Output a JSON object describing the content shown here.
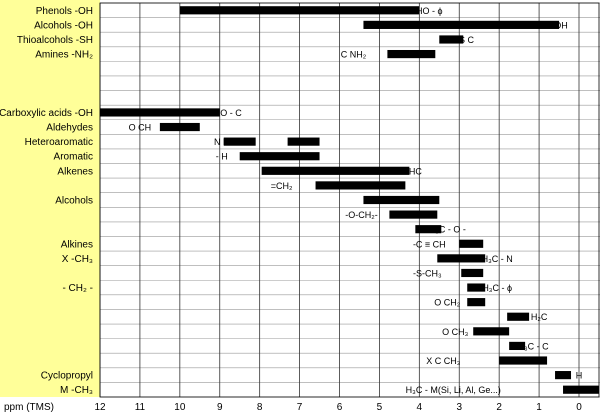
{
  "chart_data": {
    "type": "bar",
    "x_axis": {
      "label": "ppm (TMS)",
      "ticks": [
        "12",
        "11",
        "10",
        "9",
        "8",
        "7",
        "6",
        "5",
        "4",
        "3",
        "2",
        "1",
        "0"
      ],
      "range": [
        12,
        -0.5
      ],
      "reversed": true
    },
    "grid": true,
    "legend": "none",
    "colors": {
      "panel": "#ffff99",
      "bar": "#000000",
      "grid": "#999999",
      "major_grid": "#333333"
    },
    "rows": [
      {
        "label": "Phenols -OH",
        "row": 0
      },
      {
        "label": "Alcohols -OH",
        "row": 1
      },
      {
        "label": "Thioalcohols -SH",
        "row": 2
      },
      {
        "label": "Amines -NH₂",
        "row": 3
      },
      {
        "label": "Carboxylic acids -OH",
        "row": 7
      },
      {
        "label": "Aldehydes",
        "row": 8
      },
      {
        "label": "Heteroaromatic",
        "row": 9
      },
      {
        "label": "Aromatic",
        "row": 10
      },
      {
        "label": "Alkenes",
        "row": 11
      },
      {
        "label": "Alcohols",
        "row": 13
      },
      {
        "label": "Alkines",
        "row": 16
      },
      {
        "label": "X -CH₃",
        "row": 17
      },
      {
        "label": "- CH₂ -",
        "row": 19
      },
      {
        "label": "Cyclopropyl",
        "row": 25
      },
      {
        "label": "M -CH₃",
        "row": 26
      }
    ],
    "bars": [
      {
        "row": 0,
        "from": 10.0,
        "to": 4.0
      },
      {
        "row": 1,
        "from": 5.4,
        "to": 0.5
      },
      {
        "row": 2,
        "from": 3.5,
        "to": 2.9
      },
      {
        "row": 3,
        "from": 4.8,
        "to": 3.6
      },
      {
        "row": 7,
        "from": 12.0,
        "to": 9.0
      },
      {
        "row": 8,
        "from": 10.5,
        "to": 9.5
      },
      {
        "row": 9,
        "from": 8.9,
        "to": 8.1
      },
      {
        "row": 9,
        "from": 7.3,
        "to": 6.5
      },
      {
        "row": 10,
        "from": 8.5,
        "to": 6.5
      },
      {
        "row": 11,
        "from": 7.95,
        "to": 4.25
      },
      {
        "row": 12,
        "from": 6.6,
        "to": 4.35
      },
      {
        "row": 13,
        "from": 5.4,
        "to": 3.5
      },
      {
        "row": 14,
        "from": 4.75,
        "to": 3.55
      },
      {
        "row": 15,
        "from": 4.1,
        "to": 3.45
      },
      {
        "row": 16,
        "from": 3.0,
        "to": 2.4
      },
      {
        "row": 17,
        "from": 3.55,
        "to": 2.35
      },
      {
        "row": 18,
        "from": 2.95,
        "to": 2.4
      },
      {
        "row": 19,
        "from": 2.8,
        "to": 2.35
      },
      {
        "row": 20,
        "from": 2.8,
        "to": 2.35
      },
      {
        "row": 21,
        "from": 1.8,
        "to": 1.25
      },
      {
        "row": 22,
        "from": 2.65,
        "to": 1.75
      },
      {
        "row": 23,
        "from": 1.75,
        "to": 1.35
      },
      {
        "row": 24,
        "from": 2.0,
        "to": 0.8
      },
      {
        "row": 25,
        "from": 0.6,
        "to": 0.2
      },
      {
        "row": 26,
        "from": 0.4,
        "to": -0.5
      }
    ],
    "annotations": [
      {
        "row": 0,
        "at": 3.75,
        "text": "HO - ϕ"
      },
      {
        "row": 1,
        "at": 0.7,
        "text": "C · - OH"
      },
      {
        "row": 2,
        "at": 2.9,
        "text": "HS   C"
      },
      {
        "row": 3,
        "at": 5.65,
        "text": "C  NH₂"
      },
      {
        "row": 7,
        "at": 8.8,
        "text": "HO - C"
      },
      {
        "row": 8,
        "at": 11.0,
        "text": "O   CH"
      },
      {
        "row": 9,
        "at": 8.95,
        "text": "N  H"
      },
      {
        "row": 10,
        "at": 8.95,
        "text": "- H"
      },
      {
        "row": 11,
        "at": 4.1,
        "text": "HC"
      },
      {
        "row": 12,
        "at": 7.45,
        "text": "=CH₂"
      },
      {
        "row": 13,
        "at": 4.0,
        "text": "HC  O"
      },
      {
        "row": 14,
        "at": 5.45,
        "text": "-O-CH₂-"
      },
      {
        "row": 15,
        "at": 3.3,
        "text": "H₃C - O -"
      },
      {
        "row": 16,
        "at": 3.75,
        "text": "-C ≡ CH"
      },
      {
        "row": 17,
        "at": 2.05,
        "text": "H₃C - N"
      },
      {
        "row": 18,
        "at": 3.8,
        "text": "-S-CH₃"
      },
      {
        "row": 19,
        "at": 2.05,
        "text": "H₃C - ϕ"
      },
      {
        "row": 20,
        "at": 3.3,
        "text": "O   CH₂"
      },
      {
        "row": 21,
        "at": 1.0,
        "text": "H₂C"
      },
      {
        "row": 22,
        "at": 3.1,
        "text": "O   CH₃"
      },
      {
        "row": 23,
        "at": 1.15,
        "text": "H₃C - C"
      },
      {
        "row": 24,
        "at": 3.4,
        "text": "X   C   CH₃"
      },
      {
        "row": 25,
        "at": 0.0,
        "text": "H"
      },
      {
        "row": 26,
        "at": 3.15,
        "text": "H₃C - M(Si, Li, Al, Ge...)"
      }
    ]
  }
}
